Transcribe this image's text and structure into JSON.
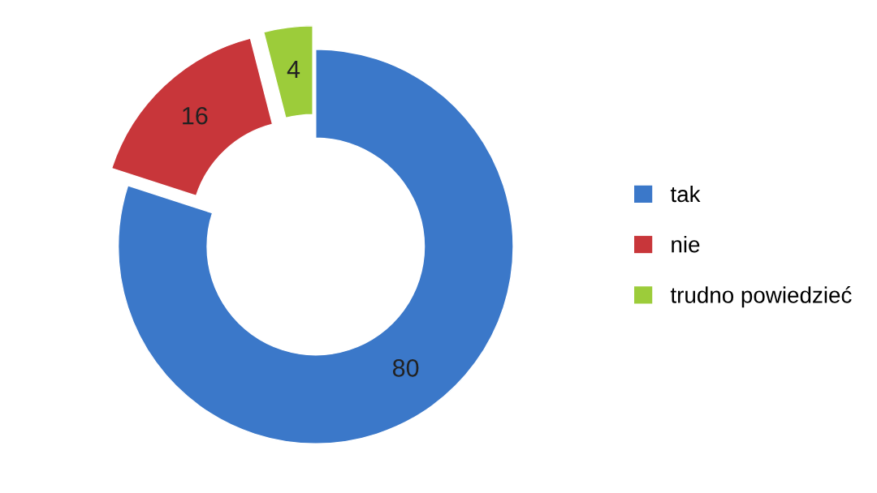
{
  "chart_data": {
    "type": "donut",
    "categories": [
      "tak",
      "nie",
      "trudno powiedzieć"
    ],
    "values": [
      80,
      16,
      4
    ],
    "colors": [
      "#3b78c9",
      "#c8363a",
      "#9ccc3a"
    ],
    "data_labels": true,
    "legend": "right"
  }
}
